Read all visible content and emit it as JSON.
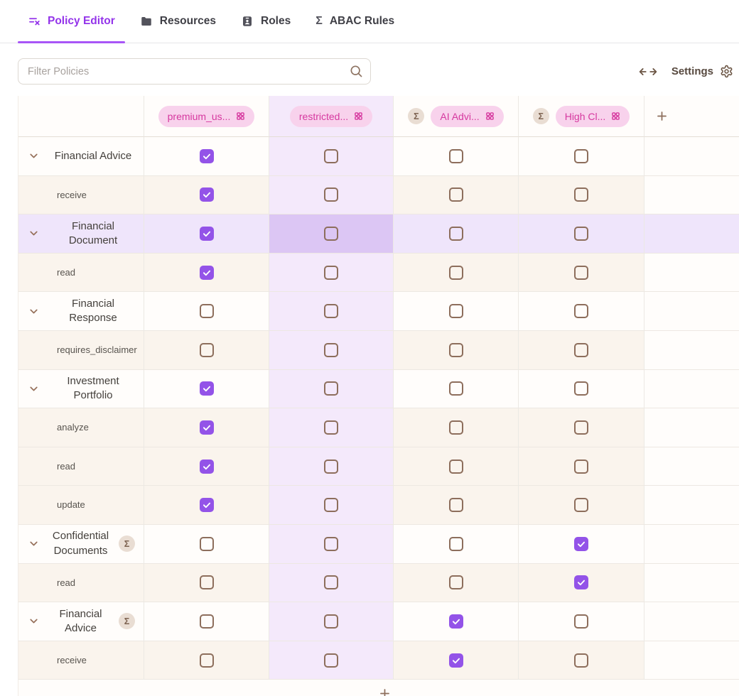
{
  "tabs": [
    {
      "label": "Policy Editor",
      "icon": "list-x-icon",
      "active": true
    },
    {
      "label": "Resources",
      "icon": "folder-icon",
      "active": false
    },
    {
      "label": "Roles",
      "icon": "id-badge-icon",
      "active": false
    },
    {
      "label": "ABAC Rules",
      "icon": "sigma-icon",
      "active": false
    }
  ],
  "toolbar": {
    "filter_placeholder": "Filter Policies",
    "settings_label": "Settings"
  },
  "sigma_symbol": "Σ",
  "matrix": {
    "columns": [
      {
        "label": "premium_us...",
        "sigma": false,
        "tinted": false
      },
      {
        "label": "restricted...",
        "sigma": false,
        "tinted": true
      },
      {
        "label": "AI Advi...",
        "sigma": true,
        "tinted": false
      },
      {
        "label": "High Cl...",
        "sigma": true,
        "tinted": false
      }
    ],
    "rows": [
      {
        "type": "resource",
        "label": "Financial Advice",
        "sigma": false,
        "highlighted": false,
        "checks": [
          true,
          false,
          false,
          false
        ]
      },
      {
        "type": "action",
        "label": "receive",
        "sigma": false,
        "highlighted": false,
        "checks": [
          true,
          false,
          false,
          false
        ]
      },
      {
        "type": "resource",
        "label": "Financial Document",
        "sigma": false,
        "highlighted": true,
        "checks": [
          true,
          false,
          false,
          false
        ]
      },
      {
        "type": "action",
        "label": "read",
        "sigma": false,
        "highlighted": false,
        "checks": [
          true,
          false,
          false,
          false
        ]
      },
      {
        "type": "resource",
        "label": "Financial Response",
        "sigma": false,
        "highlighted": false,
        "checks": [
          false,
          false,
          false,
          false
        ]
      },
      {
        "type": "action",
        "label": "requires_disclaimer",
        "sigma": false,
        "highlighted": false,
        "checks": [
          false,
          false,
          false,
          false
        ]
      },
      {
        "type": "resource",
        "label": "Investment Portfolio",
        "sigma": false,
        "highlighted": false,
        "checks": [
          true,
          false,
          false,
          false
        ]
      },
      {
        "type": "action",
        "label": "analyze",
        "sigma": false,
        "highlighted": false,
        "checks": [
          true,
          false,
          false,
          false
        ]
      },
      {
        "type": "action",
        "label": "read",
        "sigma": false,
        "highlighted": false,
        "checks": [
          true,
          false,
          false,
          false
        ]
      },
      {
        "type": "action",
        "label": "update",
        "sigma": false,
        "highlighted": false,
        "checks": [
          true,
          false,
          false,
          false
        ]
      },
      {
        "type": "resource",
        "label": "Confidential Documents",
        "sigma": true,
        "highlighted": false,
        "checks": [
          false,
          false,
          false,
          true
        ]
      },
      {
        "type": "action",
        "label": "read",
        "sigma": false,
        "highlighted": false,
        "checks": [
          false,
          false,
          false,
          true
        ]
      },
      {
        "type": "resource",
        "label": "Financial Advice",
        "sigma": true,
        "highlighted": false,
        "checks": [
          false,
          false,
          true,
          false
        ]
      },
      {
        "type": "action",
        "label": "receive",
        "sigma": false,
        "highlighted": false,
        "checks": [
          false,
          false,
          true,
          false
        ]
      }
    ]
  },
  "colors": {
    "accent_purple": "#9333ea",
    "tab_underline": "#a855f7",
    "checkbox_checked": "#9353e8",
    "pill_pink_bg": "#f8d2ec",
    "pill_pink_text": "#d6389f",
    "column_tint": "#f4e9fb",
    "row_highlight": "#efe5fb",
    "highlight_intersection": "#dcc6f4",
    "action_row_bg": "#faf4ed",
    "sigma_badge_bg": "#e9ddd3",
    "sigma_badge_text": "#7d6250",
    "brown_icon": "#8d6e5c"
  }
}
